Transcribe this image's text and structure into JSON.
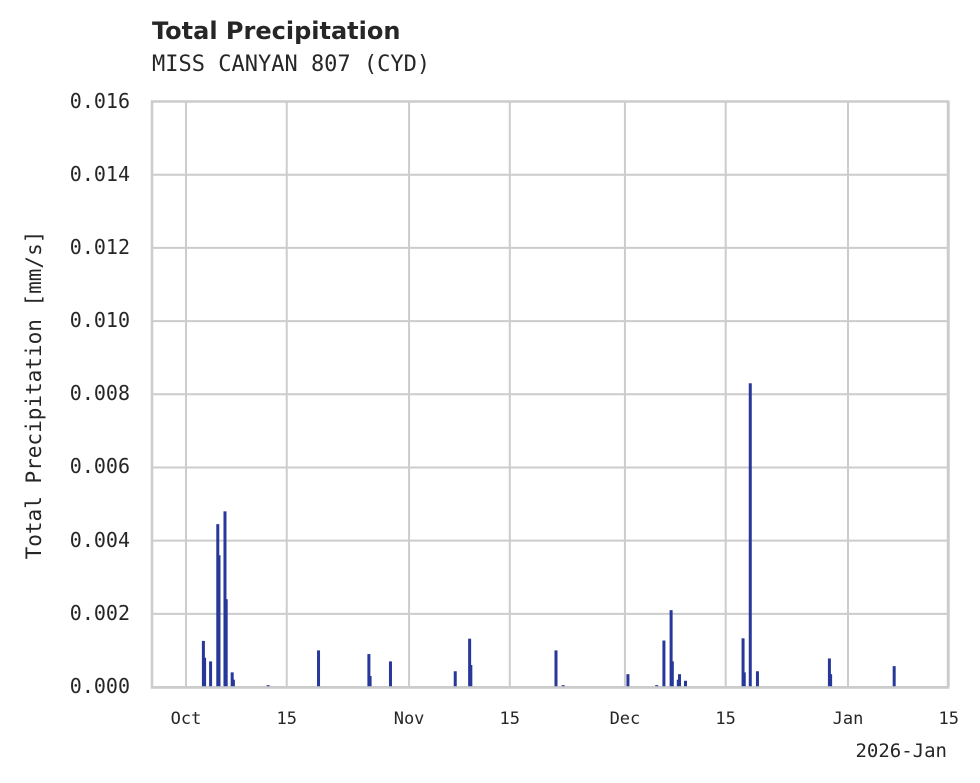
{
  "chart": {
    "title": "Total Precipitation",
    "subtitle": "MISS CANYAN 807 (CYD)",
    "ylabel": "Total Precipitation [mm/s]",
    "x_offset_label": "2026-Jan",
    "yticks": [
      "0.000",
      "0.002",
      "0.004",
      "0.006",
      "0.008",
      "0.010",
      "0.012",
      "0.014",
      "0.016"
    ],
    "xticks": [
      "Oct",
      "15",
      "Nov",
      "15",
      "Dec",
      "15",
      "Jan",
      "15"
    ],
    "bar_color": "#27379a",
    "grid_color": "#cccccc"
  },
  "chart_data": {
    "type": "bar",
    "title": "Total Precipitation",
    "subtitle": "MISS CANYAN 807 (CYD)",
    "xlabel": "",
    "ylabel": "Total Precipitation [mm/s]",
    "ylim": [
      0,
      0.016
    ],
    "xlim": [
      "2025-09-26",
      "2026-01-15"
    ],
    "x_tick_labels": [
      "Oct",
      "15",
      "Nov",
      "15",
      "Dec",
      "15",
      "Jan",
      "15"
    ],
    "x_offset_label": "2026-Jan",
    "grid": true,
    "legend": null,
    "series": [
      {
        "name": "Total Precipitation",
        "x": [
          "2025-10-03",
          "2025-10-03",
          "2025-10-04",
          "2025-10-05",
          "2025-10-05",
          "2025-10-06",
          "2025-10-06",
          "2025-10-07",
          "2025-10-07",
          "2025-10-12",
          "2025-10-19",
          "2025-10-26",
          "2025-10-26",
          "2025-10-29",
          "2025-11-07",
          "2025-11-09",
          "2025-11-09",
          "2025-11-21",
          "2025-11-22",
          "2025-12-01",
          "2025-12-05",
          "2025-12-06",
          "2025-12-07",
          "2025-12-07",
          "2025-12-08",
          "2025-12-08",
          "2025-12-09",
          "2025-12-17",
          "2025-12-17",
          "2025-12-18",
          "2025-12-19",
          "2025-12-29",
          "2025-12-29",
          "2026-01-07"
        ],
        "values": [
          0.00126,
          0.0008,
          0.0007,
          0.00445,
          0.0036,
          0.0048,
          0.0024,
          0.0004,
          0.0002,
          5e-05,
          0.001,
          0.0009,
          0.0003,
          0.0007,
          0.00043,
          0.00132,
          0.0006,
          0.001,
          5e-05,
          0.00035,
          5e-05,
          0.00127,
          0.0021,
          0.0007,
          0.0002,
          0.00035,
          0.00017,
          0.00133,
          0.0004,
          0.0083,
          0.00043,
          0.00078,
          0.00035,
          0.00057
        ]
      }
    ]
  }
}
